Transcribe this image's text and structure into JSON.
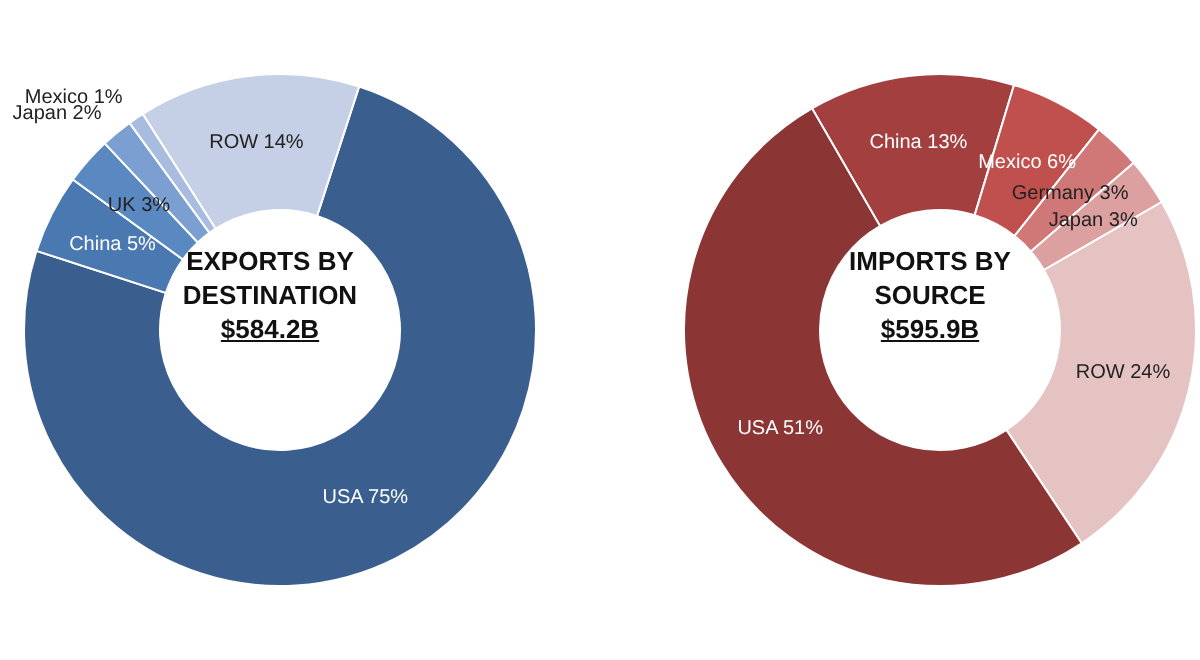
{
  "chart_data": [
    {
      "type": "donut",
      "title": "EXPORTS BY DESTINATION",
      "subtitle": "$584.2B",
      "categories": [
        "USA",
        "China",
        "UK",
        "Japan",
        "Mexico",
        "ROW"
      ],
      "values": [
        75,
        5,
        3,
        2,
        1,
        14
      ],
      "value_labels": [
        "75%",
        "5%",
        "3%",
        "2%",
        "1%",
        "14%"
      ],
      "colors": [
        "#3a5f8f",
        "#4a78b0",
        "#5a88c0",
        "#7a9fd0",
        "#a8bce0",
        "#c5d0e6"
      ]
    },
    {
      "type": "donut",
      "title": "IMPORTS BY SOURCE",
      "subtitle": "$595.9B",
      "categories": [
        "China",
        "Mexico",
        "Germany",
        "Japan",
        "ROW",
        "USA"
      ],
      "values": [
        13,
        6,
        3,
        3,
        24,
        51
      ],
      "value_labels": [
        "13%",
        "6%",
        "3%",
        "3%",
        "24%",
        "51%"
      ],
      "colors": [
        "#a33f3f",
        "#c0504d",
        "#d07878",
        "#dca0a0",
        "#e6c3c3",
        "#8b3535"
      ]
    }
  ]
}
